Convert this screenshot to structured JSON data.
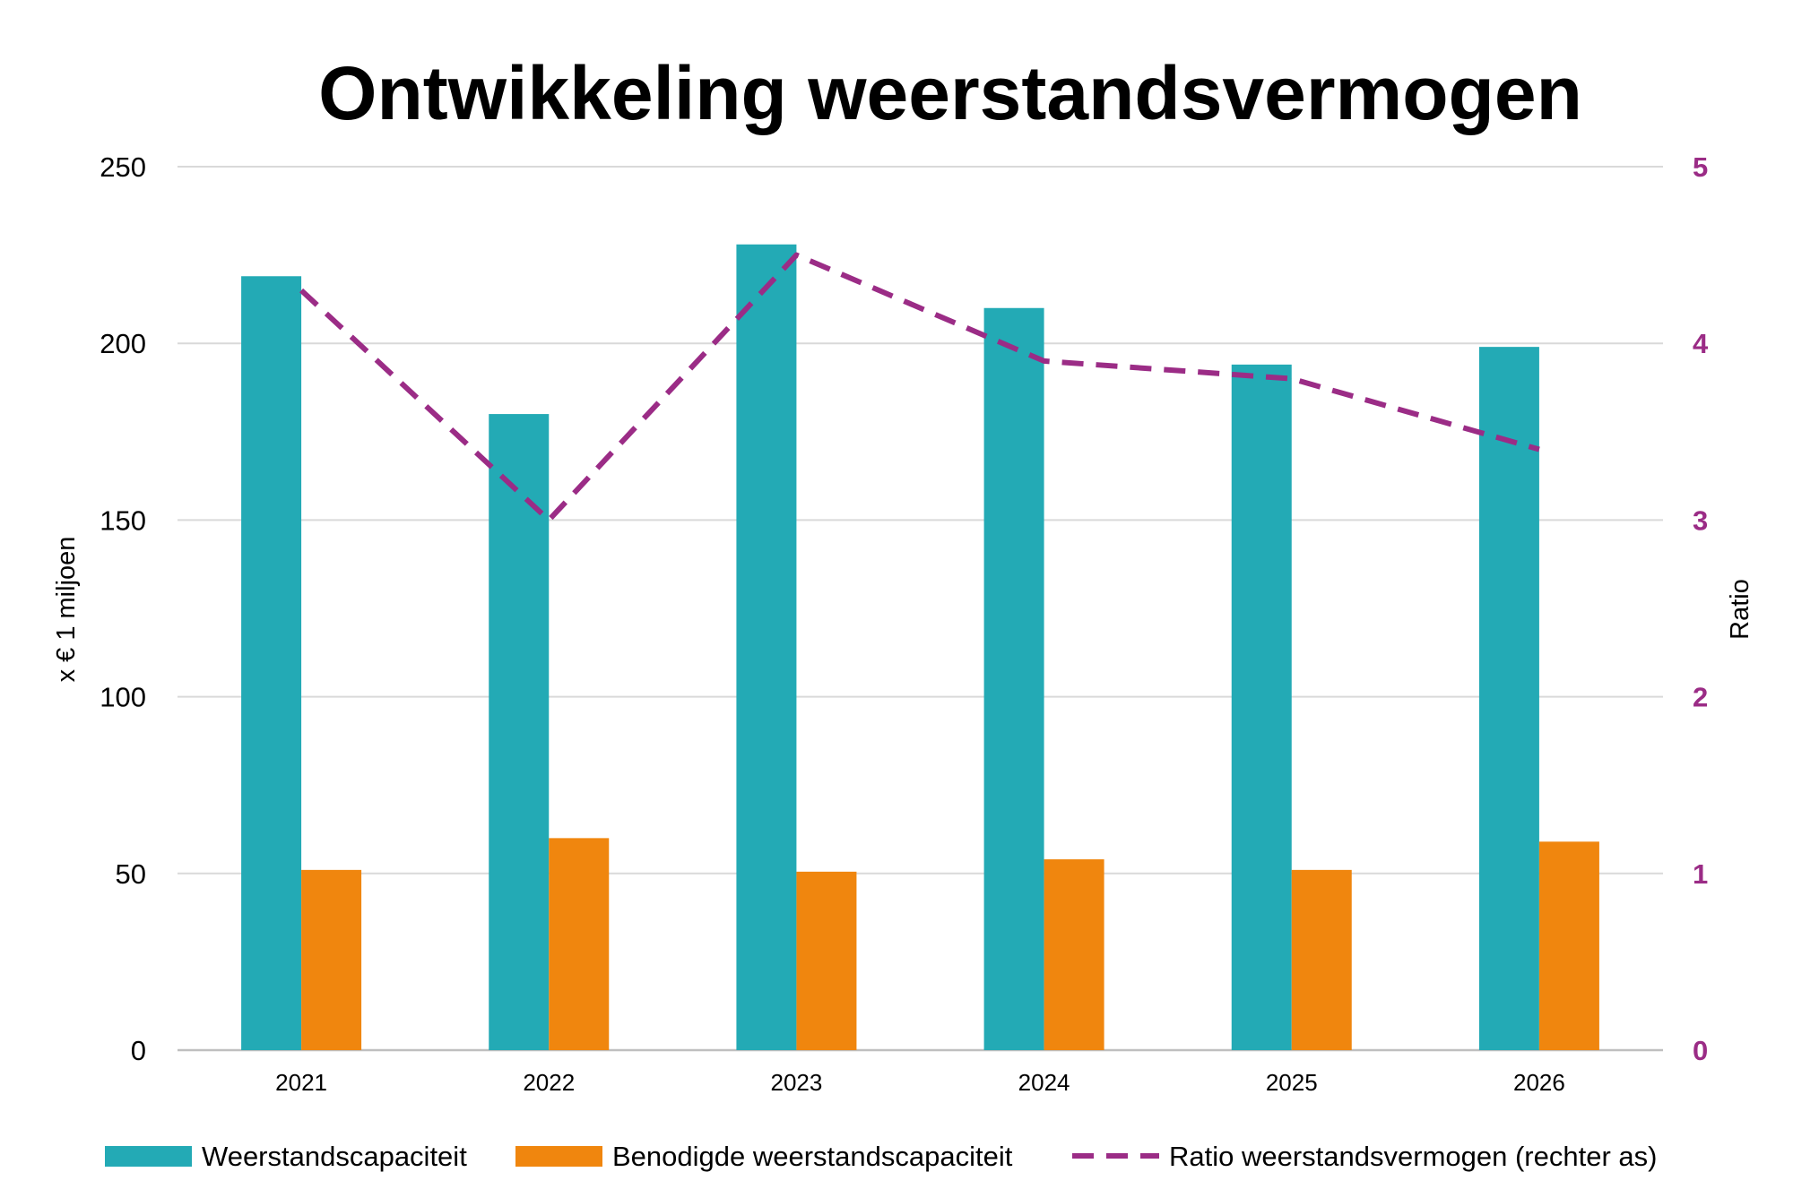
{
  "chart_data": {
    "type": "bar",
    "title": "Ontwikkeling weerstandsvermogen",
    "categories": [
      "2021",
      "2022",
      "2023",
      "2024",
      "2025",
      "2026"
    ],
    "series": [
      {
        "name": "Weerstandscapaciteit",
        "type": "bar",
        "axis": "left",
        "color": "#23AAB5",
        "values": [
          219,
          180,
          228,
          210,
          194,
          199
        ]
      },
      {
        "name": "Benodigde weerstandscapaciteit",
        "type": "bar",
        "axis": "left",
        "color": "#F0860E",
        "values": [
          51,
          60,
          50.5,
          54,
          51,
          59
        ]
      },
      {
        "name": "Ratio weerstandsvermogen (rechter as)",
        "type": "line",
        "style": "dashed",
        "axis": "right",
        "color": "#9B2C86",
        "values": [
          4.3,
          3.0,
          4.5,
          3.9,
          3.8,
          3.4
        ]
      }
    ],
    "ylabel": "x € 1 miljoen",
    "ylim": [
      0,
      250
    ],
    "yticks": [
      "0",
      "50",
      "100",
      "150",
      "200",
      "250"
    ],
    "y2label": "Ratio",
    "y2lim": [
      0,
      5
    ],
    "y2ticks": [
      "0",
      "1",
      "2",
      "3",
      "4",
      "5"
    ],
    "grid": true,
    "legend_position": "bottom"
  }
}
